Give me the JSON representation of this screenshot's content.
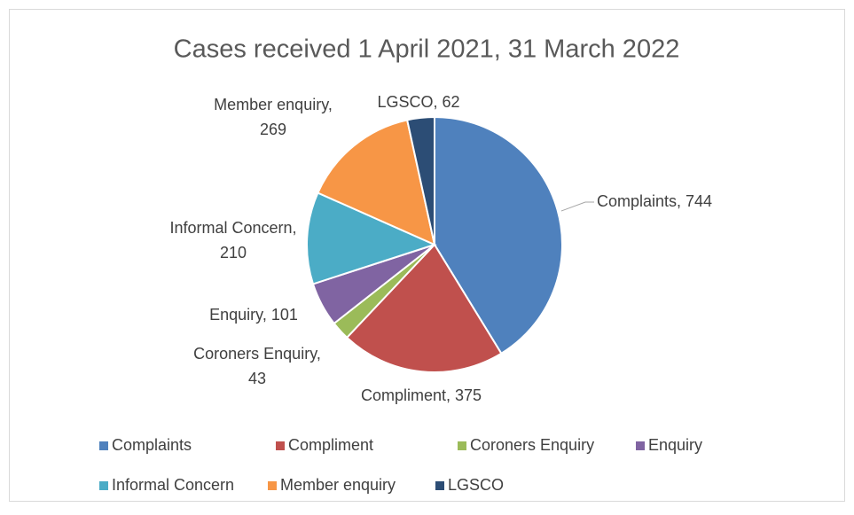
{
  "chart_data": {
    "type": "pie",
    "title": "Cases received 1 April 2021, 31 March 2022",
    "categories": [
      "Complaints",
      "Compliment",
      "Coroners Enquiry",
      "Enquiry",
      "Informal Concern",
      "Member enquiry",
      "LGSCO"
    ],
    "values": [
      744,
      375,
      43,
      101,
      210,
      269,
      62
    ],
    "value_labels": [
      [
        "Complaints, 744"
      ],
      [
        "Compliment, 375"
      ],
      [
        "Coroners Enquiry,",
        "43"
      ],
      [
        "Enquiry, 101"
      ],
      [
        "Informal Concern,",
        "210"
      ],
      [
        "Member enquiry,",
        "269"
      ],
      [
        "LGSCO, 62"
      ]
    ],
    "colors": [
      "#4f81bd",
      "#c0504d",
      "#9bbb59",
      "#8064a2",
      "#4bacc6",
      "#f79646",
      "#2c4d75"
    ],
    "legend": "bottom"
  }
}
